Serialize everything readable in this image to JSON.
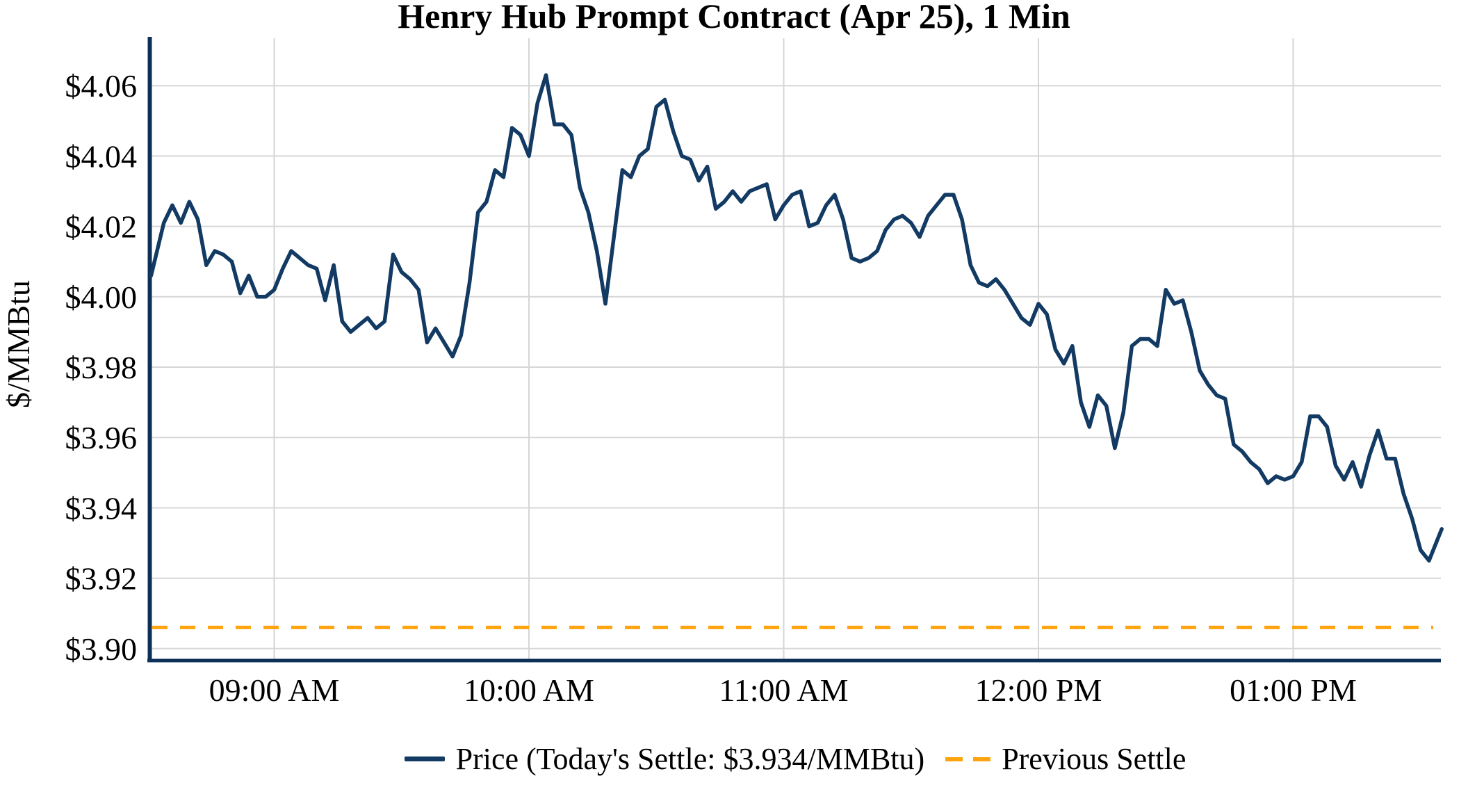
{
  "title": "Henry Hub Prompt Contract (Apr 25), 1 Min",
  "y_axis_label": "$/MMBtu",
  "legend": {
    "price_label": "Price (Today's Settle: $3.934/MMBtu)",
    "previous_settle_label": "Previous Settle"
  },
  "colors": {
    "price_line": "#123a63",
    "axis": "#0d3059",
    "previous_settle_line": "#ffa40e",
    "gridline": "#d6d6d6",
    "text": "#000000",
    "background": "#ffffff"
  },
  "chart_data": {
    "type": "line",
    "title": "Henry Hub Prompt Contract (Apr 25), 1 Min",
    "xlabel": "",
    "ylabel": "$/MMBtu",
    "grid": true,
    "legend_position": "bottom",
    "time_start": "08:30 AM",
    "time_end": "01:35 PM",
    "interval": "1 Min",
    "todays_settle": 3.934,
    "previous_settle": 3.906,
    "ylim": [
      3.895,
      4.068
    ],
    "y_ticks": [
      {
        "value": 3.9,
        "label": "$3.90"
      },
      {
        "value": 3.92,
        "label": "$3.92"
      },
      {
        "value": 3.94,
        "label": "$3.94"
      },
      {
        "value": 3.96,
        "label": "$3.96"
      },
      {
        "value": 3.98,
        "label": "$3.98"
      },
      {
        "value": 4.0,
        "label": "$4.00"
      },
      {
        "value": 4.02,
        "label": "$4.02"
      },
      {
        "value": 4.04,
        "label": "$4.04"
      },
      {
        "value": 4.06,
        "label": "$4.06"
      }
    ],
    "x_ticks": [
      {
        "minute": 30,
        "label": "09:00 AM"
      },
      {
        "minute": 90,
        "label": "10:00 AM"
      },
      {
        "minute": 150,
        "label": "11:00 AM"
      },
      {
        "minute": 210,
        "label": "12:00 PM"
      },
      {
        "minute": 270,
        "label": "01:00 PM"
      }
    ],
    "series": [
      {
        "name": "Price",
        "type": "line",
        "style": "solid",
        "x_unit": "minutes_after_0830",
        "points": [
          [
            1,
            4.006
          ],
          [
            2,
            4.011
          ],
          [
            4,
            4.021
          ],
          [
            6,
            4.026
          ],
          [
            8,
            4.021
          ],
          [
            10,
            4.027
          ],
          [
            12,
            4.022
          ],
          [
            14,
            4.009
          ],
          [
            16,
            4.013
          ],
          [
            18,
            4.012
          ],
          [
            20,
            4.01
          ],
          [
            22,
            4.001
          ],
          [
            24,
            4.006
          ],
          [
            26,
            4.0
          ],
          [
            28,
            4.0
          ],
          [
            30,
            4.002
          ],
          [
            32,
            4.008
          ],
          [
            34,
            4.013
          ],
          [
            36,
            4.011
          ],
          [
            38,
            4.009
          ],
          [
            40,
            4.008
          ],
          [
            42,
            3.999
          ],
          [
            44,
            4.009
          ],
          [
            46,
            3.993
          ],
          [
            48,
            3.99
          ],
          [
            50,
            3.992
          ],
          [
            52,
            3.994
          ],
          [
            54,
            3.991
          ],
          [
            56,
            3.993
          ],
          [
            58,
            4.012
          ],
          [
            60,
            4.007
          ],
          [
            62,
            4.005
          ],
          [
            64,
            4.002
          ],
          [
            66,
            3.987
          ],
          [
            68,
            3.991
          ],
          [
            70,
            3.987
          ],
          [
            72,
            3.983
          ],
          [
            74,
            3.989
          ],
          [
            76,
            4.004
          ],
          [
            78,
            4.024
          ],
          [
            80,
            4.027
          ],
          [
            82,
            4.036
          ],
          [
            84,
            4.034
          ],
          [
            86,
            4.048
          ],
          [
            88,
            4.046
          ],
          [
            90,
            4.04
          ],
          [
            92,
            4.055
          ],
          [
            94,
            4.063
          ],
          [
            96,
            4.049
          ],
          [
            98,
            4.049
          ],
          [
            100,
            4.046
          ],
          [
            102,
            4.031
          ],
          [
            104,
            4.024
          ],
          [
            106,
            4.013
          ],
          [
            108,
            3.998
          ],
          [
            110,
            4.017
          ],
          [
            112,
            4.036
          ],
          [
            114,
            4.034
          ],
          [
            116,
            4.04
          ],
          [
            118,
            4.042
          ],
          [
            120,
            4.054
          ],
          [
            122,
            4.056
          ],
          [
            124,
            4.047
          ],
          [
            126,
            4.04
          ],
          [
            128,
            4.039
          ],
          [
            130,
            4.033
          ],
          [
            132,
            4.037
          ],
          [
            134,
            4.025
          ],
          [
            136,
            4.027
          ],
          [
            138,
            4.03
          ],
          [
            140,
            4.027
          ],
          [
            142,
            4.03
          ],
          [
            144,
            4.031
          ],
          [
            146,
            4.032
          ],
          [
            148,
            4.022
          ],
          [
            150,
            4.026
          ],
          [
            152,
            4.029
          ],
          [
            154,
            4.03
          ],
          [
            156,
            4.02
          ],
          [
            158,
            4.021
          ],
          [
            160,
            4.026
          ],
          [
            162,
            4.029
          ],
          [
            164,
            4.022
          ],
          [
            166,
            4.011
          ],
          [
            168,
            4.01
          ],
          [
            170,
            4.011
          ],
          [
            172,
            4.013
          ],
          [
            174,
            4.019
          ],
          [
            176,
            4.022
          ],
          [
            178,
            4.023
          ],
          [
            180,
            4.021
          ],
          [
            182,
            4.017
          ],
          [
            184,
            4.023
          ],
          [
            186,
            4.026
          ],
          [
            188,
            4.029
          ],
          [
            190,
            4.029
          ],
          [
            192,
            4.022
          ],
          [
            194,
            4.009
          ],
          [
            196,
            4.004
          ],
          [
            198,
            4.003
          ],
          [
            200,
            4.005
          ],
          [
            202,
            4.002
          ],
          [
            204,
            3.998
          ],
          [
            206,
            3.994
          ],
          [
            208,
            3.992
          ],
          [
            210,
            3.998
          ],
          [
            212,
            3.995
          ],
          [
            214,
            3.985
          ],
          [
            216,
            3.981
          ],
          [
            218,
            3.986
          ],
          [
            220,
            3.97
          ],
          [
            222,
            3.963
          ],
          [
            224,
            3.972
          ],
          [
            226,
            3.969
          ],
          [
            228,
            3.957
          ],
          [
            230,
            3.967
          ],
          [
            232,
            3.986
          ],
          [
            234,
            3.988
          ],
          [
            236,
            3.988
          ],
          [
            238,
            3.986
          ],
          [
            240,
            4.002
          ],
          [
            242,
            3.998
          ],
          [
            244,
            3.999
          ],
          [
            246,
            3.99
          ],
          [
            248,
            3.979
          ],
          [
            250,
            3.975
          ],
          [
            252,
            3.972
          ],
          [
            254,
            3.971
          ],
          [
            256,
            3.958
          ],
          [
            258,
            3.956
          ],
          [
            260,
            3.953
          ],
          [
            262,
            3.951
          ],
          [
            264,
            3.947
          ],
          [
            266,
            3.949
          ],
          [
            268,
            3.948
          ],
          [
            270,
            3.949
          ],
          [
            272,
            3.953
          ],
          [
            274,
            3.966
          ],
          [
            276,
            3.966
          ],
          [
            278,
            3.963
          ],
          [
            280,
            3.952
          ],
          [
            282,
            3.948
          ],
          [
            284,
            3.953
          ],
          [
            286,
            3.946
          ],
          [
            288,
            3.955
          ],
          [
            290,
            3.962
          ],
          [
            292,
            3.954
          ],
          [
            294,
            3.954
          ],
          [
            296,
            3.944
          ],
          [
            298,
            3.937
          ],
          [
            300,
            3.928
          ],
          [
            302,
            3.925
          ],
          [
            304,
            3.931
          ],
          [
            305,
            3.934
          ]
        ]
      },
      {
        "name": "Previous Settle",
        "type": "hline",
        "style": "dashed",
        "value": 3.906
      }
    ]
  }
}
